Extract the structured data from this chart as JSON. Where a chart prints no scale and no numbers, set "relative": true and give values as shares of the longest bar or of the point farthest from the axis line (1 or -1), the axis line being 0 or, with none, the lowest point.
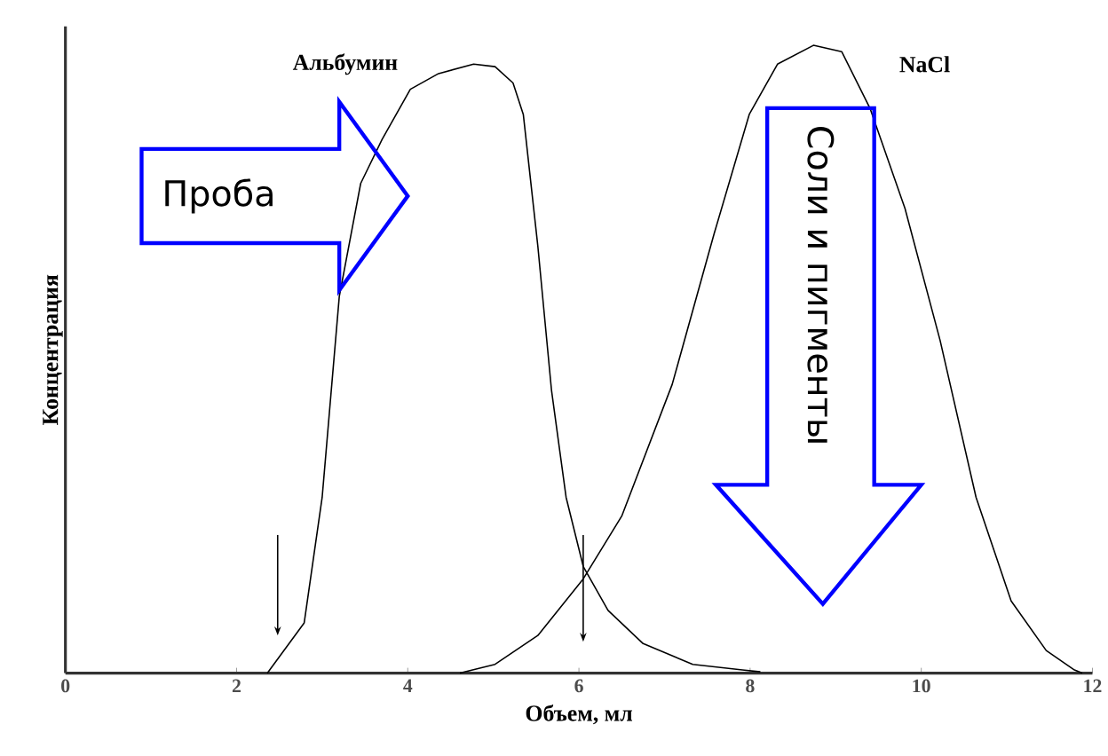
{
  "chart_data": {
    "type": "line",
    "relative": true,
    "xlabel": "Объем, мл",
    "ylabel": "Концентрация",
    "xlim": [
      0,
      12
    ],
    "xticks": [
      0,
      2,
      4,
      6,
      8,
      10,
      12
    ],
    "annotations": [
      "Проба",
      "Соли и пигменты"
    ],
    "series": [
      {
        "name": "Альбумин",
        "color": "#000000",
        "x": [
          2.36,
          2.79,
          3.0,
          3.2,
          3.45,
          3.7,
          4.03,
          4.36,
          4.77,
          5.02,
          5.23,
          5.35,
          5.52,
          5.68,
          5.85,
          6.05,
          6.34,
          6.75,
          7.33,
          7.91,
          8.12
        ],
        "values": [
          0,
          0.08,
          0.28,
          0.6,
          0.78,
          0.85,
          0.93,
          0.955,
          0.97,
          0.966,
          0.94,
          0.89,
          0.68,
          0.45,
          0.28,
          0.17,
          0.1,
          0.047,
          0.014,
          0.005,
          0.002
        ]
      },
      {
        "name": "NaCl",
        "color": "#000000",
        "x": [
          4.61,
          5.02,
          5.52,
          6.05,
          6.5,
          7.09,
          7.58,
          7.99,
          8.32,
          8.74,
          9.07,
          9.4,
          9.81,
          10.22,
          10.64,
          11.05,
          11.46,
          11.79,
          11.88
        ],
        "values": [
          0,
          0.014,
          0.06,
          0.15,
          0.25,
          0.46,
          0.7,
          0.89,
          0.97,
          1.0,
          0.99,
          0.9,
          0.74,
          0.53,
          0.28,
          0.115,
          0.036,
          0.005,
          0
        ]
      }
    ]
  }
}
